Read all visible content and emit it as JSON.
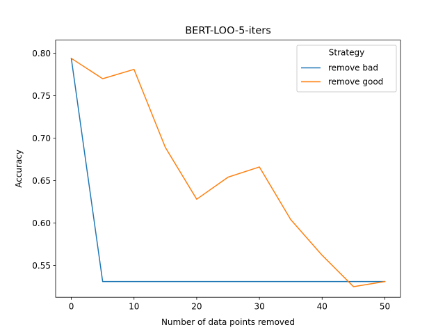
{
  "chart_data": {
    "type": "line",
    "title": "BERT-LOO-5-iters",
    "xlabel": "Number of data points removed",
    "ylabel": "Accuracy",
    "xlim": [
      -2.5,
      52.5
    ],
    "ylim": [
      0.5125,
      0.8155
    ],
    "x_ticks": [
      0,
      10,
      20,
      30,
      40,
      50
    ],
    "x_tick_labels": [
      "0",
      "10",
      "20",
      "30",
      "40",
      "50"
    ],
    "y_ticks": [
      0.55,
      0.6,
      0.65,
      0.7,
      0.75,
      0.8
    ],
    "y_tick_labels": [
      "0.55",
      "0.60",
      "0.65",
      "0.70",
      "0.75",
      "0.80"
    ],
    "grid": false,
    "legend": {
      "title": "Strategy",
      "position": "top-right"
    },
    "x": [
      0,
      5,
      10,
      15,
      20,
      25,
      30,
      35,
      40,
      45,
      50
    ],
    "series": [
      {
        "name": "remove bad",
        "color": "#1f77b4",
        "values": [
          0.794,
          0.531,
          0.531,
          0.531,
          0.531,
          0.531,
          0.531,
          0.531,
          0.531,
          0.531,
          0.531
        ]
      },
      {
        "name": "remove good",
        "color": "#ff7f0e",
        "values": [
          0.794,
          0.77,
          0.781,
          0.689,
          0.628,
          0.654,
          0.666,
          0.604,
          0.562,
          0.525,
          0.531
        ]
      }
    ]
  }
}
